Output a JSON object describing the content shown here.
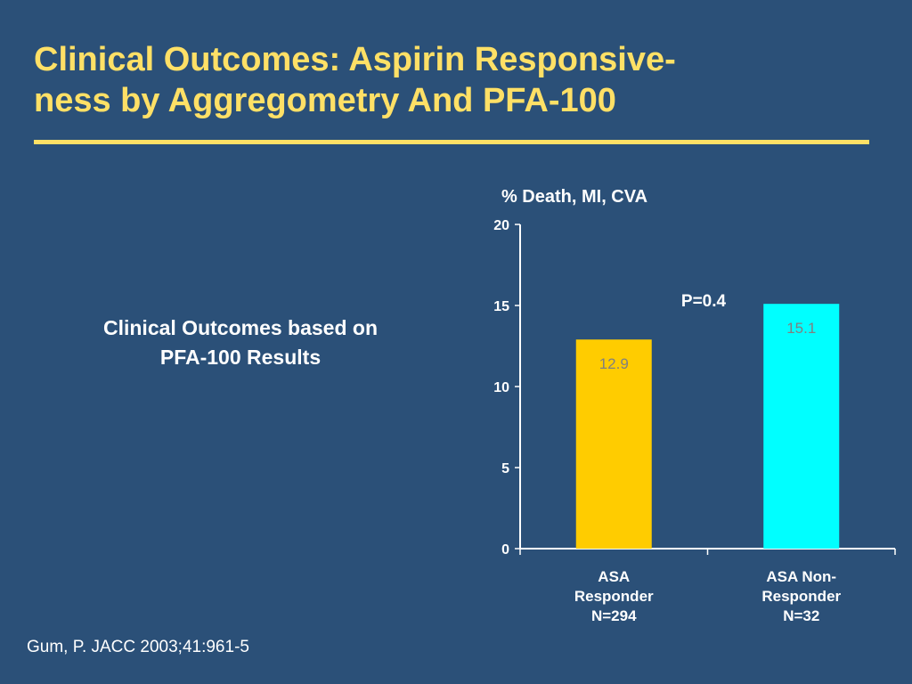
{
  "slide": {
    "title_line1": "Clinical Outcomes: Aspirin Responsive-",
    "title_line2": "ness by Aggregometry And PFA-100",
    "subtitle_line1": "Clinical Outcomes based on",
    "subtitle_line2": "PFA-100 Results",
    "citation": "Gum, P. JACC 2003;41:961-5"
  },
  "colors": {
    "background": "#2b5078",
    "title": "#ffe066",
    "bar_responder": "#ffcc00",
    "bar_nonresponder": "#00ffff",
    "data_label": "#808080"
  },
  "chart_data": {
    "type": "bar",
    "ylabel": "% Death, MI, CVA",
    "ylim": [
      0,
      20
    ],
    "yticks": [
      0,
      5,
      10,
      15,
      20
    ],
    "grid": false,
    "categories": [
      [
        "ASA",
        "Responder",
        "N=294"
      ],
      [
        "ASA Non-",
        "Responder",
        "N=32"
      ]
    ],
    "values": [
      12.9,
      15.1
    ],
    "value_labels": [
      "12.9",
      "15.1"
    ],
    "annotation": "P=0.4"
  }
}
